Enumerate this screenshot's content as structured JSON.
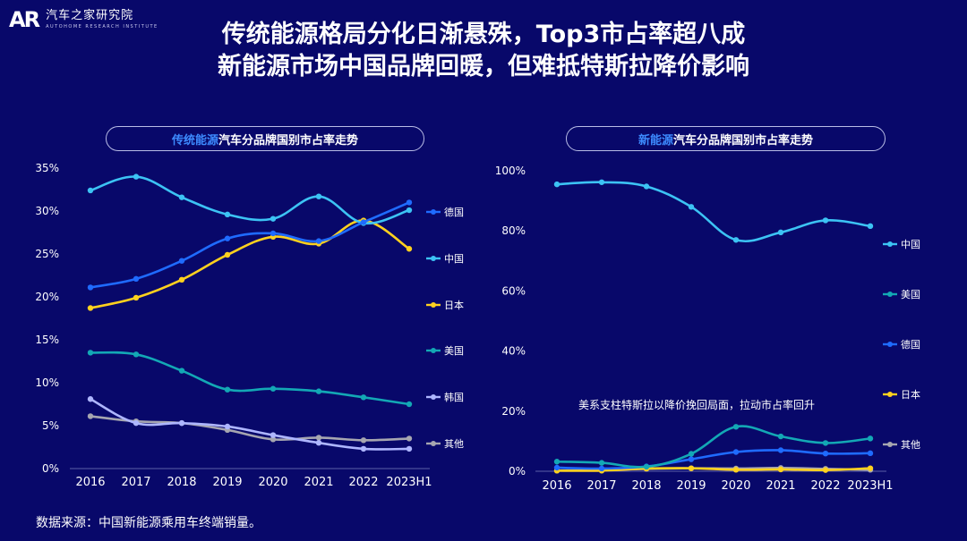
{
  "header": {
    "logo_mark": "AR",
    "logo_name": "汽车之家研究院",
    "logo_sub": "AUTOHOME RESEARCH INSTITUTE",
    "title_line1": "传统能源格局分化日渐悬殊，Top3市占率超八成",
    "title_line2": "新能源市场中国品牌回暖，但难抵特斯拉降价影响"
  },
  "left_panel": {
    "title_highlight": "传统能源",
    "title_rest": "汽车分品牌国别市占率走势"
  },
  "right_panel": {
    "title_highlight": "新能源",
    "title_rest": "汽车分品牌国别市占率走势"
  },
  "note": "美系支柱特斯拉以降价挽回局面，拉动市占率回升",
  "source": "数据来源：中国新能源乘用车终端销量。",
  "colors": {
    "德国": "#1f6bff",
    "中国": "#3cc3f4",
    "日本": "#ffd11e",
    "美国": "#13a8b5",
    "韩国": "#aeb6ff",
    "其他": "#a6a6b0"
  },
  "chart_data": [
    {
      "type": "line",
      "title": "传统能源汽车分品牌国别市占率走势",
      "categories": [
        "2016",
        "2017",
        "2018",
        "2019",
        "2020",
        "2021",
        "2022",
        "2023H1"
      ],
      "ylim": [
        0,
        35
      ],
      "yticks": [
        "0%",
        "5%",
        "10%",
        "15%",
        "20%",
        "25%",
        "30%",
        "35%"
      ],
      "series": [
        {
          "name": "德国",
          "values": [
            21.1,
            22.1,
            24.2,
            26.8,
            27.4,
            26.5,
            28.7,
            31.0
          ]
        },
        {
          "name": "中国",
          "values": [
            32.4,
            34.0,
            31.6,
            29.6,
            29.1,
            31.7,
            28.6,
            30.1
          ]
        },
        {
          "name": "日本",
          "values": [
            18.7,
            19.9,
            22.0,
            24.9,
            27.0,
            26.2,
            28.9,
            25.6
          ]
        },
        {
          "name": "美国",
          "values": [
            13.5,
            13.3,
            11.4,
            9.2,
            9.3,
            9.0,
            8.3,
            7.5
          ]
        },
        {
          "name": "韩国",
          "values": [
            8.1,
            5.3,
            5.3,
            4.9,
            3.9,
            3.0,
            2.3,
            2.3
          ]
        },
        {
          "name": "其他",
          "values": [
            6.1,
            5.5,
            5.3,
            4.5,
            3.4,
            3.6,
            3.3,
            3.5
          ]
        }
      ]
    },
    {
      "type": "line",
      "title": "新能源汽车分品牌国别市占率走势",
      "categories": [
        "2016",
        "2017",
        "2018",
        "2019",
        "2020",
        "2021",
        "2022",
        "2023H1"
      ],
      "ylim": [
        0,
        100
      ],
      "yticks": [
        "0%",
        "20%",
        "40%",
        "60%",
        "80%",
        "100%"
      ],
      "series": [
        {
          "name": "中国",
          "values": [
            95.5,
            96.2,
            94.8,
            88.0,
            77.0,
            79.5,
            83.5,
            81.6
          ]
        },
        {
          "name": "美国",
          "values": [
            3.2,
            2.8,
            1.5,
            5.8,
            14.8,
            11.6,
            9.4,
            10.9
          ]
        },
        {
          "name": "德国",
          "values": [
            1.2,
            0.9,
            1.6,
            4.0,
            6.4,
            7.0,
            5.9,
            6.0
          ]
        },
        {
          "name": "日本",
          "values": [
            0.2,
            0.2,
            0.9,
            1.0,
            0.5,
            0.6,
            0.4,
            1.0
          ]
        },
        {
          "name": "其他",
          "values": [
            0.2,
            0.4,
            0.8,
            1.0,
            0.9,
            1.1,
            0.8,
            0.5
          ]
        }
      ]
    }
  ]
}
